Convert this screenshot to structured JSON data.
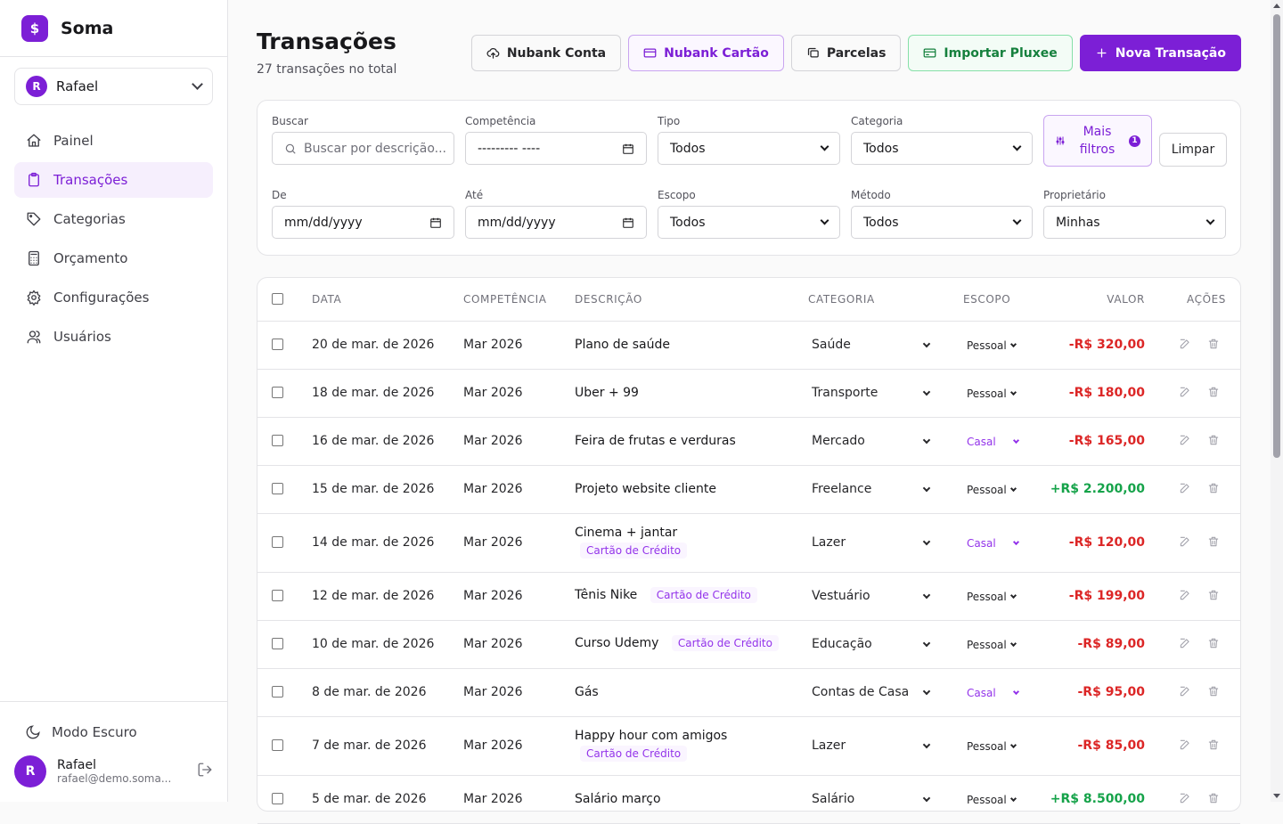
{
  "app": {
    "name": "Soma",
    "logo_glyph": "$"
  },
  "user_switcher": {
    "initial": "R",
    "name": "Rafael"
  },
  "nav": {
    "items": [
      {
        "label": "Painel",
        "icon": "home-icon"
      },
      {
        "label": "Transações",
        "icon": "clipboard-icon",
        "active": true
      },
      {
        "label": "Categorias",
        "icon": "tag-icon"
      },
      {
        "label": "Orçamento",
        "icon": "calculator-icon"
      },
      {
        "label": "Configurações",
        "icon": "gear-icon"
      },
      {
        "label": "Usuários",
        "icon": "users-icon"
      }
    ]
  },
  "sidebar_footer": {
    "dark_mode_label": "Modo Escuro",
    "profile": {
      "initial": "R",
      "name": "Rafael",
      "email": "rafael@demo.soma..."
    }
  },
  "header": {
    "title": "Transações",
    "subtitle": "27 transações no total"
  },
  "toolbar": {
    "nubank_conta": "Nubank Conta",
    "nubank_cartao": "Nubank Cartão",
    "parcelas": "Parcelas",
    "importar_pluxee": "Importar Pluxee",
    "nova_transacao": "Nova Transação"
  },
  "filters": {
    "buscar": {
      "label": "Buscar",
      "placeholder": "Buscar por descrição..."
    },
    "competencia": {
      "label": "Competência",
      "value": "--------- ----"
    },
    "tipo": {
      "label": "Tipo",
      "value": "Todos"
    },
    "categoria": {
      "label": "Categoria",
      "value": "Todos"
    },
    "mais_filtros": {
      "line1": "Mais",
      "line2": "filtros",
      "count": "1"
    },
    "limpar": "Limpar",
    "de": {
      "label": "De",
      "value": "mm/dd/yyyy"
    },
    "ate": {
      "label": "Até",
      "value": "mm/dd/yyyy"
    },
    "escopo": {
      "label": "Escopo",
      "value": "Todos"
    },
    "metodo": {
      "label": "Método",
      "value": "Todos"
    },
    "proprietario": {
      "label": "Proprietário",
      "value": "Minhas"
    }
  },
  "table": {
    "headers": {
      "data": "DATA",
      "competencia": "COMPETÊNCIA",
      "descricao": "DESCRIÇÃO",
      "categoria": "CATEGORIA",
      "escopo": "ESCOPO",
      "valor": "VALOR",
      "acoes": "AÇÕES"
    },
    "rows": [
      {
        "date": "20 de mar. de 2026",
        "comp": "Mar 2026",
        "desc": "Plano de saúde",
        "tag": "",
        "tag_inline": false,
        "cat": "Saúde",
        "scope": "Pessoal",
        "amount": "-R$ 320,00",
        "income": false
      },
      {
        "date": "18 de mar. de 2026",
        "comp": "Mar 2026",
        "desc": "Uber + 99",
        "tag": "",
        "tag_inline": false,
        "cat": "Transporte",
        "scope": "Pessoal",
        "amount": "-R$ 180,00",
        "income": false
      },
      {
        "date": "16 de mar. de 2026",
        "comp": "Mar 2026",
        "desc": "Feira de frutas e verduras",
        "tag": "",
        "tag_inline": false,
        "cat": "Mercado",
        "scope": "Casal",
        "amount": "-R$ 165,00",
        "income": false
      },
      {
        "date": "15 de mar. de 2026",
        "comp": "Mar 2026",
        "desc": "Projeto website cliente",
        "tag": "",
        "tag_inline": false,
        "cat": "Freelance",
        "scope": "Pessoal",
        "amount": "+R$ 2.200,00",
        "income": true
      },
      {
        "date": "14 de mar. de 2026",
        "comp": "Mar 2026",
        "desc": "Cinema + jantar",
        "tag": "Cartão de Crédito",
        "tag_inline": false,
        "cat": "Lazer",
        "scope": "Casal",
        "amount": "-R$ 120,00",
        "income": false
      },
      {
        "date": "12 de mar. de 2026",
        "comp": "Mar 2026",
        "desc": "Tênis Nike",
        "tag": "Cartão de Crédito",
        "tag_inline": true,
        "cat": "Vestuário",
        "scope": "Pessoal",
        "amount": "-R$ 199,00",
        "income": false
      },
      {
        "date": "10 de mar. de 2026",
        "comp": "Mar 2026",
        "desc": "Curso Udemy",
        "tag": "Cartão de Crédito",
        "tag_inline": true,
        "cat": "Educação",
        "scope": "Pessoal",
        "amount": "-R$ 89,00",
        "income": false
      },
      {
        "date": "8 de mar. de 2026",
        "comp": "Mar 2026",
        "desc": "Gás",
        "tag": "",
        "tag_inline": false,
        "cat": "Contas de Casa",
        "scope": "Casal",
        "amount": "-R$ 95,00",
        "income": false
      },
      {
        "date": "7 de mar. de 2026",
        "comp": "Mar 2026",
        "desc": "Happy hour com amigos",
        "tag": "Cartão de Crédito",
        "tag_inline": false,
        "cat": "Lazer",
        "scope": "Pessoal",
        "amount": "-R$ 85,00",
        "income": false
      },
      {
        "date": "5 de mar. de 2026",
        "comp": "Mar 2026",
        "desc": "Salário março",
        "tag": "",
        "tag_inline": false,
        "cat": "Salário",
        "scope": "Pessoal",
        "amount": "+R$ 8.500,00",
        "income": true
      }
    ]
  },
  "colors": {
    "brand": "#7c1fd6",
    "expense": "#dc2626",
    "income": "#16a34a",
    "scope_casal": "#9333ea",
    "scope_pessoal": "#27272a"
  }
}
